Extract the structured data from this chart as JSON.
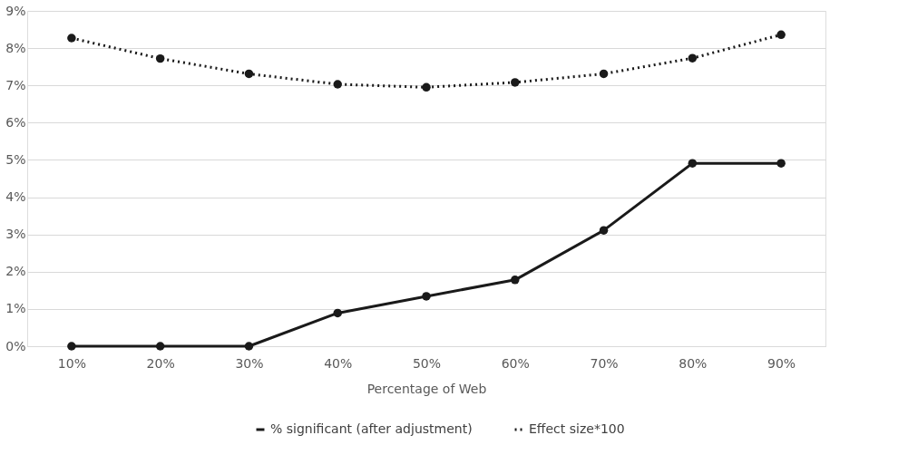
{
  "chart_data": {
    "type": "line",
    "xlabel": "Percentage of Web",
    "categories": [
      "10%",
      "20%",
      "30%",
      "40%",
      "50%",
      "60%",
      "70%",
      "80%",
      "90%"
    ],
    "series": [
      {
        "name": "% significant (after adjustment)",
        "color": "#1a1a1a",
        "line_style": "solid",
        "marker": "circle",
        "values": [
          0,
          0,
          0,
          0.89,
          1.34,
          1.78,
          3.11,
          4.91,
          4.91
        ]
      },
      {
        "name": "Effect size*100",
        "color": "#1a1a1a",
        "line_style": "dotted",
        "marker": "circle",
        "values": [
          8.27,
          7.72,
          7.31,
          7.03,
          6.95,
          7.08,
          7.31,
          7.73,
          8.36
        ]
      }
    ],
    "ylim": [
      0,
      9
    ],
    "yticks": [
      {
        "value": 0,
        "label": "0%"
      },
      {
        "value": 1,
        "label": "1%"
      },
      {
        "value": 2,
        "label": "2%"
      },
      {
        "value": 3,
        "label": "3%"
      },
      {
        "value": 4,
        "label": "4%"
      },
      {
        "value": 5,
        "label": "5%"
      },
      {
        "value": 6,
        "label": "6%"
      },
      {
        "value": 7,
        "label": "7%"
      },
      {
        "value": 8,
        "label": "8%"
      },
      {
        "value": 9,
        "label": "9%"
      }
    ],
    "grid": "y",
    "legend": "bottom"
  }
}
